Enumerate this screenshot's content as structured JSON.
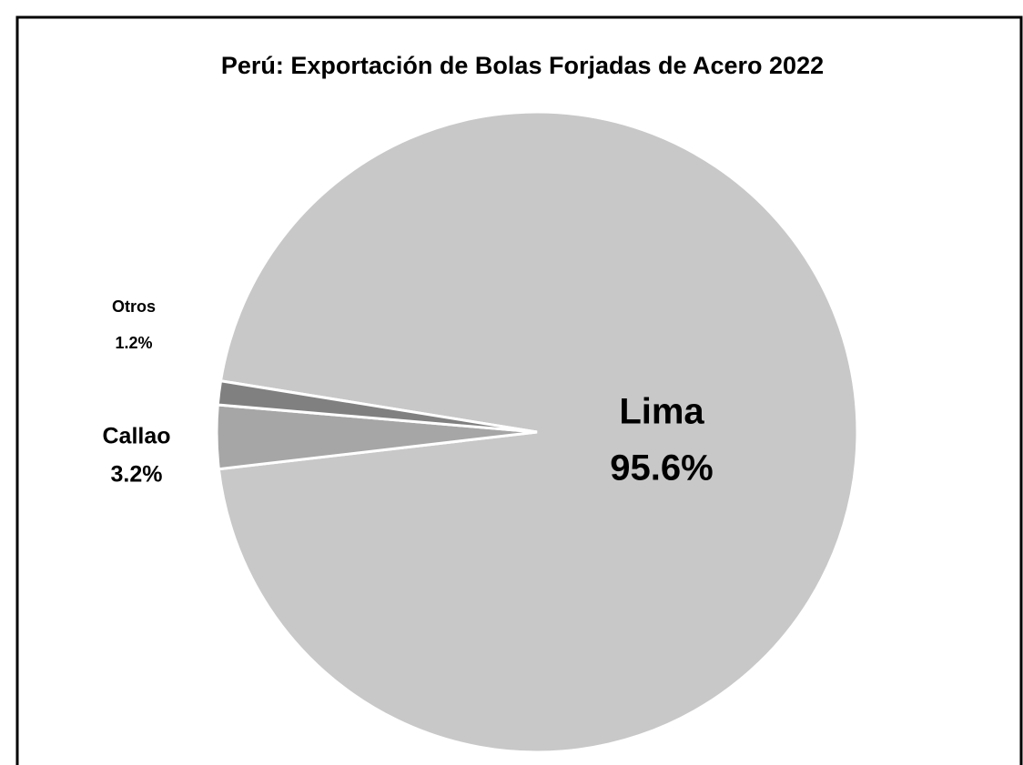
{
  "chart_data": {
    "type": "pie",
    "title": "Perú: Exportación de Bolas Forjadas de Acero 2022",
    "categories": [
      "Lima",
      "Callao",
      "Otros"
    ],
    "values": [
      95.6,
      3.2,
      1.2
    ],
    "value_labels": [
      "95.6%",
      "3.2%",
      "1.2%"
    ],
    "colors": [
      "#c8c8c8",
      "#a6a6a6",
      "#808080"
    ]
  }
}
